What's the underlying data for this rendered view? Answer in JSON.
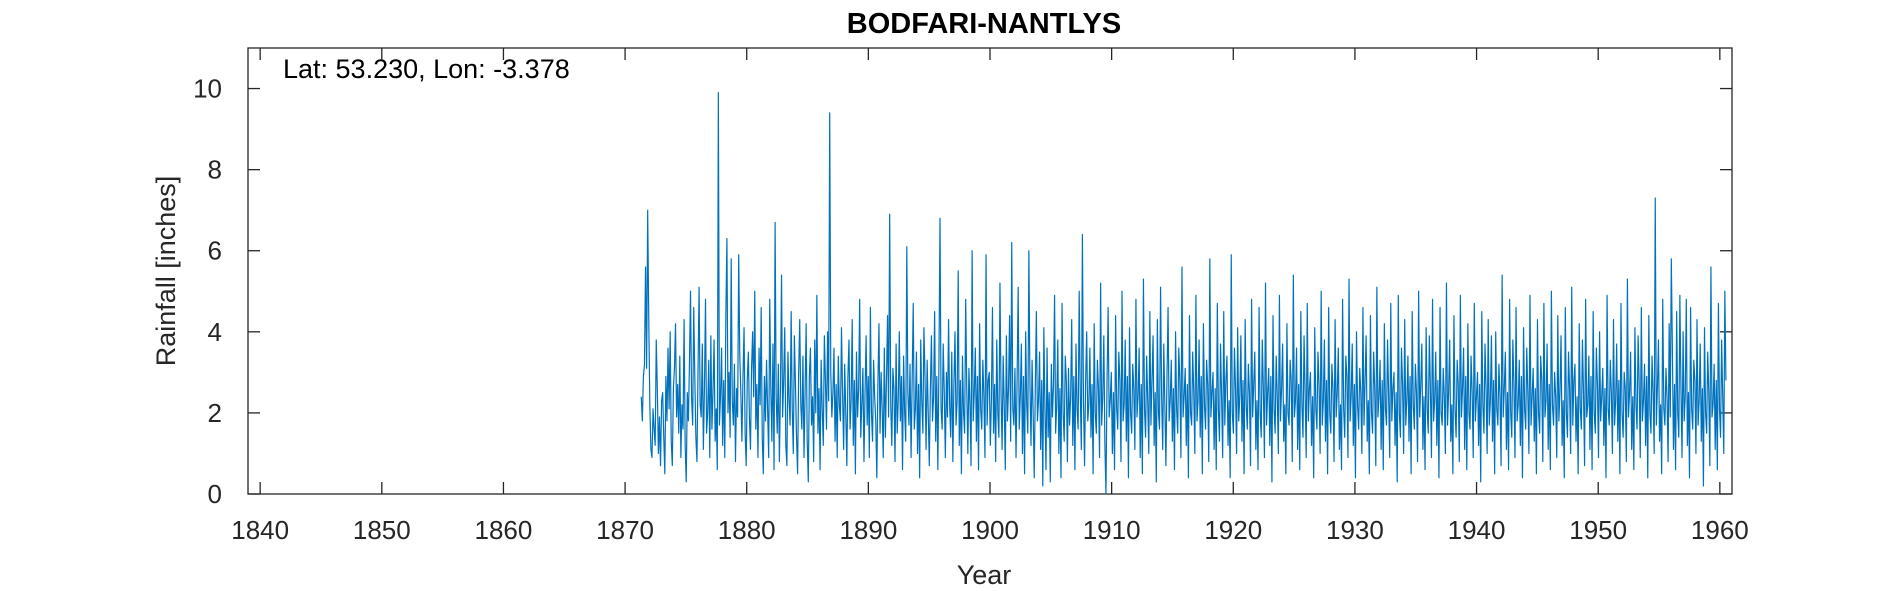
{
  "chart_data": {
    "type": "line",
    "title": "BODFARI-NANTLYS",
    "xlabel": "Year",
    "ylabel": "Rainfall [inches]",
    "annotation": "Lat: 53.230, Lon: -3.378",
    "xlim": [
      1839,
      1961
    ],
    "ylim": [
      0,
      11
    ],
    "xticks": [
      1840,
      1850,
      1860,
      1870,
      1880,
      1890,
      1900,
      1910,
      1920,
      1930,
      1940,
      1950,
      1960
    ],
    "yticks": [
      0,
      2,
      4,
      6,
      8,
      10
    ],
    "grid": false,
    "box": true,
    "series": [
      {
        "color": "#0072BD",
        "sampling": "monthly",
        "start_year": 1871.33,
        "end_year": 1960.5,
        "values": [
          2.4,
          1.8,
          2.9,
          3.2,
          5.6,
          3.1,
          7.0,
          4.3,
          2.2,
          1.1,
          0.9,
          2.1,
          1.6,
          1.2,
          3.8,
          2.6,
          1.0,
          1.9,
          0.7,
          2.3,
          2.5,
          1.4,
          0.5,
          2.9,
          1.8,
          3.6,
          2.1,
          4.0,
          1.3,
          0.7,
          2.6,
          3.1,
          4.2,
          1.9,
          2.7,
          1.5,
          3.4,
          0.9,
          2.2,
          1.6,
          4.3,
          1.2,
          0.3,
          2.5,
          1.8,
          3.2,
          5.0,
          2.4,
          1.7,
          4.6,
          2.9,
          1.4,
          0.8,
          3.0,
          5.1,
          2.2,
          1.9,
          3.7,
          1.1,
          2.6,
          4.8,
          1.5,
          2.0,
          3.3,
          0.9,
          3.9,
          1.6,
          2.5,
          3.8,
          1.3,
          2.1,
          0.6,
          9.9,
          1.7,
          2.4,
          3.6,
          1.2,
          2.8,
          0.9,
          4.4,
          6.3,
          2.0,
          3.0,
          1.4,
          5.8,
          2.3,
          1.7,
          3.2,
          0.8,
          2.6,
          1.9,
          5.9,
          3.4,
          2.5,
          1.3,
          2.9,
          4.1,
          1.5,
          0.7,
          2.8,
          3.5,
          1.9,
          1.1,
          3.1,
          4.0,
          2.4,
          5.0,
          1.6,
          2.7,
          0.9,
          3.6,
          2.2,
          4.6,
          1.4,
          0.5,
          2.9,
          1.8,
          3.3,
          2.1,
          0.9,
          4.8,
          2.6,
          1.3,
          3.7,
          0.6,
          6.7,
          2.4,
          1.5,
          3.2,
          0.8,
          2.6,
          5.4,
          1.9,
          2.8,
          4.1,
          1.2,
          0.7,
          3.5,
          2.3,
          1.7,
          4.5,
          2.1,
          1.0,
          3.9,
          2.7,
          1.4,
          0.5,
          3.0,
          4.3,
          2.2,
          1.6,
          3.4,
          0.9,
          2.5,
          4.2,
          1.3,
          0.3,
          2.9,
          3.6,
          1.7,
          2.4,
          0.8,
          3.8,
          2.0,
          4.9,
          1.5,
          2.6,
          0.6,
          3.3,
          2.1,
          1.2,
          3.9,
          2.8,
          1.6,
          4.0,
          2.3,
          9.4,
          3.0,
          1.9,
          2.5,
          3.6,
          1.3,
          2.7,
          0.9,
          3.4,
          2.2,
          1.8,
          4.1,
          2.5,
          1.1,
          3.2,
          2.0,
          0.7,
          2.9,
          3.8,
          1.6,
          2.3,
          4.3,
          1.2,
          2.8,
          0.5,
          3.5,
          1.9,
          2.6,
          4.8,
          1.4,
          2.2,
          3.1,
          0.8,
          2.5,
          3.9,
          1.7,
          2.9,
          0.9,
          4.6,
          2.0,
          1.3,
          3.3,
          2.4,
          1.8,
          0.4,
          2.7,
          4.2,
          1.5,
          3.0,
          2.1,
          0.9,
          3.6,
          1.4,
          2.8,
          4.4,
          1.9,
          6.9,
          2.2,
          1.2,
          3.1,
          2.6,
          0.8,
          3.7,
          1.5,
          2.3,
          4.0,
          1.8,
          2.9,
          0.6,
          3.4,
          2.0,
          1.3,
          6.1,
          2.5,
          1.7,
          3.2,
          0.9,
          2.8,
          4.7,
          1.6,
          2.1,
          3.5,
          1.0,
          2.7,
          0.4,
          3.8,
          2.3,
          1.5,
          4.1,
          2.9,
          1.1,
          3.3,
          2.0,
          0.7,
          2.6,
          3.9,
          1.8,
          2.4,
          4.5,
          1.3,
          2.9,
          0.6,
          3.2,
          6.8,
          2.1,
          1.6,
          3.7,
          2.5,
          0.9,
          3.0,
          1.9,
          4.3,
          2.2,
          1.4,
          3.5,
          0.8,
          2.7,
          4.0,
          1.7,
          2.3,
          5.5,
          1.2,
          2.8,
          0.5,
          3.4,
          2.0,
          1.5,
          4.8,
          2.6,
          1.0,
          3.1,
          2.2,
          0.7,
          6.0,
          1.8,
          2.5,
          3.6,
          1.3,
          2.9,
          0.6,
          4.2,
          2.1,
          1.6,
          3.3,
          2.4,
          0.9,
          5.9,
          1.7,
          2.8,
          3.0,
          1.2,
          2.3,
          4.6,
          1.5,
          2.7,
          0.8,
          3.8,
          2.0,
          1.4,
          5.2,
          2.5,
          1.1,
          3.4,
          2.2,
          0.6,
          3.9,
          1.8,
          2.6,
          4.4,
          1.3,
          6.2,
          2.1,
          1.7,
          3.1,
          0.9,
          2.8,
          5.1,
          1.6,
          2.4,
          3.7,
          1.0,
          2.9,
          0.5,
          4.0,
          2.2,
          1.5,
          6.0,
          2.7,
          1.2,
          3.3,
          2.0,
          0.4,
          2.6,
          4.5,
          1.8,
          2.3,
          3.5,
          1.1,
          2.8,
          0.2,
          4.1,
          2.1,
          0.6,
          3.6,
          1.4,
          2.5,
          0.3,
          3.2,
          1.9,
          2.7,
          4.9,
          1.5,
          2.2,
          3.8,
          1.0,
          2.6,
          0.4,
          4.7,
          2.0,
          1.3,
          3.4,
          2.8,
          0.8,
          3.1,
          1.7,
          2.4,
          4.3,
          1.2,
          2.9,
          0.6,
          3.7,
          2.1,
          1.6,
          5.0,
          2.5,
          1.1,
          6.4,
          2.3,
          0.7,
          2.8,
          4.0,
          1.8,
          2.2,
          3.6,
          1.4,
          2.7,
          0.5,
          4.2,
          2.0,
          1.5,
          3.3,
          2.6,
          0.9,
          5.2,
          1.7,
          2.4,
          3.9,
          1.2,
          0.0,
          2.8,
          4.6,
          1.9,
          2.3,
          3.0,
          1.0,
          2.5,
          0.6,
          4.4,
          2.1,
          1.6,
          3.5,
          2.8,
          0.8,
          5.0,
          1.8,
          2.2,
          3.8,
          1.3,
          2.9,
          0.4,
          4.1,
          2.0,
          1.5,
          3.2,
          2.6,
          1.1,
          4.8,
          1.9,
          2.4,
          3.6,
          0.9,
          2.7,
          0.5,
          5.3,
          2.1,
          1.4,
          3.4,
          2.3,
          1.0,
          4.5,
          1.7,
          2.8,
          3.9,
          1.2,
          2.5,
          0.3,
          4.3,
          2.0,
          1.6,
          5.1,
          2.4,
          1.1,
          3.7,
          2.2,
          0.7,
          2.9,
          4.6,
          1.8,
          2.3,
          3.3,
          1.3,
          2.6,
          0.6,
          4.0,
          2.1,
          1.5,
          3.6,
          2.8,
          0.9,
          5.6,
          1.9,
          2.4,
          3.1,
          1.2,
          2.7,
          0.4,
          4.4,
          2.0,
          1.7,
          3.5,
          2.5,
          1.0,
          4.9,
          1.8,
          2.3,
          3.8,
          1.4,
          2.9,
          0.5,
          4.2,
          2.2,
          1.6,
          3.3,
          2.7,
          0.8,
          5.8,
          1.9,
          2.5,
          3.0,
          1.1,
          2.6,
          0.6,
          4.7,
          2.1,
          1.3,
          3.7,
          2.4,
          0.9,
          4.5,
          1.7,
          2.8,
          3.4,
          1.2,
          2.3,
          0.4,
          5.9,
          2.0,
          1.5,
          3.6,
          2.6,
          1.0,
          4.1,
          1.8,
          2.4,
          3.9,
          1.3,
          2.8,
          0.5,
          4.3,
          2.2,
          1.6,
          3.2,
          2.5,
          0.7,
          4.8,
          1.9,
          2.7,
          3.5,
          1.1,
          2.3,
          0.6,
          4.6,
          2.0,
          1.4,
          3.8,
          2.6,
          0.9,
          5.2,
          1.7,
          2.5,
          3.1,
          1.2,
          2.9,
          0.3,
          4.4,
          2.1,
          1.5,
          3.4,
          2.4,
          1.0,
          4.9,
          1.8,
          2.6,
          3.7,
          1.3,
          2.2,
          0.5,
          4.2,
          2.0,
          1.7,
          3.3,
          2.8,
          0.8,
          5.4,
          1.9,
          2.3,
          3.6,
          1.1,
          2.7,
          0.6,
          4.5,
          2.2,
          1.4,
          3.9,
          2.5,
          0.9,
          4.7,
          1.8,
          2.6,
          3.0,
          1.2,
          2.4,
          0.4,
          4.1,
          2.1,
          1.6,
          3.5,
          2.7,
          1.0,
          5.0,
          1.7,
          2.3,
          3.8,
          1.3,
          2.8,
          0.5,
          4.6,
          2.0,
          1.5,
          3.2,
          2.6,
          0.8,
          4.3,
          1.9,
          2.5,
          3.6,
          1.1,
          2.2,
          0.6,
          4.8,
          2.1,
          1.4,
          3.4,
          2.9,
          0.9,
          5.3,
          1.8,
          2.4,
          3.7,
          1.2,
          2.7,
          0.4,
          4.0,
          2.2,
          1.6,
          3.1,
          2.5,
          1.0,
          4.6,
          1.7,
          2.8,
          3.9,
          1.3,
          2.3,
          0.5,
          4.4,
          2.0,
          1.5,
          3.5,
          2.6,
          0.7,
          5.1,
          1.9,
          2.4,
          3.3,
          1.1,
          2.8,
          0.6,
          4.2,
          2.1,
          1.7,
          3.8,
          2.4,
          0.9,
          4.7,
          1.8,
          2.6,
          3.0,
          1.2,
          2.5,
          0.3,
          4.9,
          2.0,
          1.4,
          3.6,
          2.7,
          1.0,
          4.3,
          1.7,
          2.3,
          3.4,
          1.3,
          2.9,
          0.5,
          4.5,
          2.2,
          1.6,
          3.2,
          2.5,
          0.8,
          5.0,
          1.9,
          2.7,
          3.7,
          1.1,
          2.4,
          0.6,
          4.1,
          2.1,
          1.5,
          3.9,
          2.6,
          0.9,
          4.8,
          1.8,
          2.3,
          3.5,
          1.2,
          2.8,
          0.4,
          4.6,
          2.0,
          1.7,
          3.1,
          2.4,
          1.0,
          5.2,
          1.7,
          2.5,
          3.8,
          1.3,
          2.2,
          0.5,
          4.4,
          2.1,
          1.4,
          3.3,
          2.7,
          0.8,
          4.9,
          1.9,
          2.6,
          3.6,
          1.1,
          2.9,
          0.6,
          4.2,
          2.0,
          1.6,
          3.4,
          2.5,
          0.9,
          4.7,
          1.8,
          2.4,
          3.0,
          1.2,
          2.7,
          0.3,
          4.5,
          2.2,
          1.5,
          3.7,
          2.6,
          1.0,
          4.3,
          1.7,
          2.3,
          3.9,
          1.3,
          2.8,
          0.5,
          4.0,
          2.1,
          1.7,
          3.2,
          2.4,
          0.7,
          5.4,
          1.9,
          2.6,
          3.5,
          1.1,
          2.5,
          0.6,
          4.8,
          2.0,
          1.4,
          3.8,
          2.7,
          0.9,
          4.6,
          1.8,
          2.2,
          3.3,
          1.2,
          2.9,
          0.4,
          4.1,
          2.1,
          1.6,
          3.6,
          2.5,
          1.0,
          4.9,
          1.7,
          2.4,
          3.1,
          1.3,
          2.6,
          0.5,
          4.3,
          2.0,
          1.5,
          3.4,
          2.8,
          0.8,
          4.7,
          1.9,
          2.3,
          3.7,
          1.1,
          2.7,
          0.6,
          5.0,
          2.2,
          1.7,
          3.0,
          2.4,
          0.9,
          4.4,
          1.8,
          2.5,
          3.9,
          1.2,
          2.3,
          0.4,
          4.6,
          2.0,
          1.4,
          3.5,
          2.6,
          1.0,
          5.1,
          1.7,
          2.8,
          3.2,
          1.3,
          2.4,
          0.5,
          4.2,
          2.1,
          1.6,
          3.8,
          2.5,
          0.7,
          4.8,
          1.9,
          2.2,
          3.4,
          1.1,
          2.9,
          0.6,
          4.5,
          2.0,
          1.5,
          3.6,
          2.7,
          0.9,
          4.0,
          1.8,
          2.4,
          3.1,
          1.2,
          2.6,
          0.4,
          4.9,
          2.1,
          1.7,
          3.3,
          2.5,
          1.0,
          4.3,
          1.7,
          2.3,
          3.7,
          1.3,
          2.8,
          0.5,
          4.7,
          2.0,
          1.4,
          3.0,
          2.6,
          0.8,
          5.3,
          1.9,
          2.5,
          3.5,
          1.1,
          2.4,
          0.6,
          4.1,
          2.2,
          1.6,
          3.9,
          2.7,
          0.9,
          4.6,
          1.8,
          2.3,
          3.2,
          1.2,
          2.9,
          0.4,
          4.4,
          2.0,
          1.5,
          3.4,
          2.5,
          1.0,
          7.3,
          1.7,
          2.6,
          3.8,
          1.3,
          2.2,
          0.5,
          4.8,
          2.1,
          1.7,
          3.1,
          2.4,
          0.8,
          4.2,
          1.9,
          5.8,
          3.6,
          1.1,
          2.7,
          0.6,
          4.5,
          2.0,
          1.4,
          4.9,
          2.6,
          0.9,
          4.0,
          1.8,
          2.4,
          4.8,
          1.2,
          2.5,
          0.4,
          4.6,
          2.1,
          1.6,
          3.3,
          2.8,
          1.0,
          4.3,
          1.7,
          2.3,
          3.7,
          1.3,
          2.6,
          0.2,
          4.1,
          2.0,
          1.5,
          3.5,
          2.5,
          0.7,
          5.6,
          1.9,
          2.2,
          3.2,
          1.1,
          2.8,
          0.6,
          4.7,
          2.1,
          1.4,
          3.8,
          2.4,
          1.0,
          5.0,
          2.8
        ]
      }
    ]
  }
}
